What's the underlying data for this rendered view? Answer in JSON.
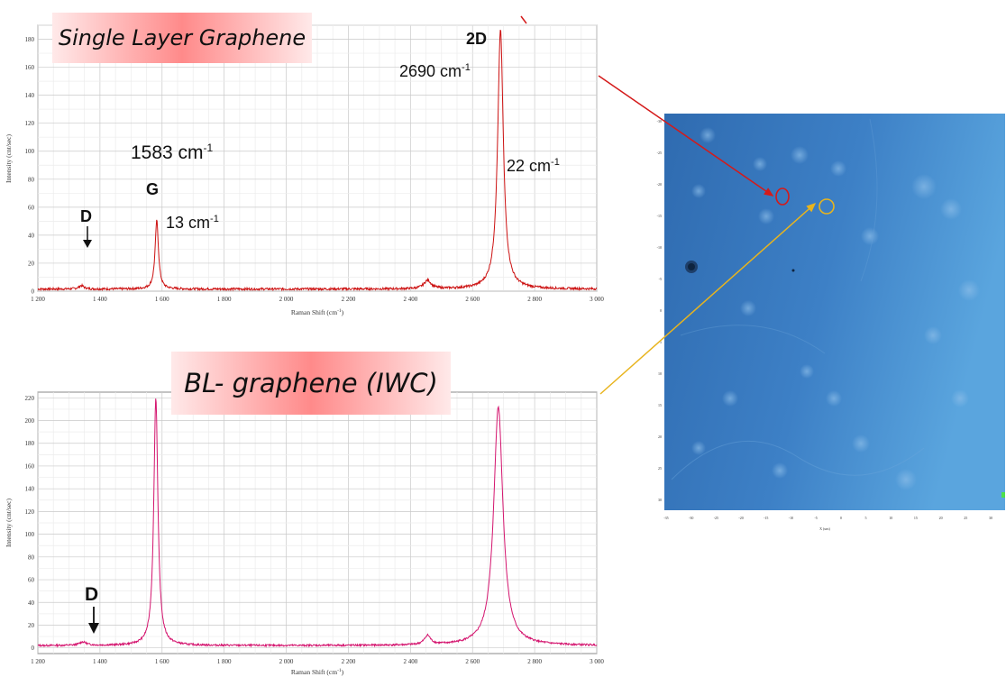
{
  "chart_data": [
    {
      "type": "line",
      "title": "Single Layer Graphene",
      "xlabel": "Raman Shift (cm",
      "xlabel_sup": "-1",
      "xlabel_end": ")",
      "ylabel": "Intensity (cnt/sec)",
      "xlim": [
        1200,
        3000
      ],
      "ylim": [
        0,
        190
      ],
      "x_ticks": [
        1200,
        1400,
        1600,
        1800,
        2000,
        2200,
        2400,
        2600,
        2800,
        3000
      ],
      "x_tick_labels": [
        "1 200",
        "1 400",
        "1 600",
        "1 800",
        "2 000",
        "2 200",
        "2 400",
        "2 600",
        "2 800",
        "3 000"
      ],
      "y_ticks": [
        0,
        20,
        40,
        60,
        80,
        100,
        120,
        140,
        160,
        180
      ],
      "y_tick_labels": [
        "0",
        "20",
        "40",
        "60",
        "80",
        "100",
        "120",
        "140",
        "160",
        "180"
      ],
      "grid": true,
      "line_color": "#cc1111",
      "baseline": 1.5,
      "peaks": [
        {
          "x": 1340,
          "height": 2.5,
          "width": 10
        },
        {
          "x": 1583,
          "height": 49,
          "width": 6.5
        },
        {
          "x": 2455,
          "height": 6,
          "width": 14
        },
        {
          "x": 2690,
          "height": 185,
          "width": 11
        }
      ],
      "annotations": {
        "peak_2d": "2D",
        "pos_2d": "2690 cm",
        "pos_2d_sup": "-1",
        "fwhm_2d": "22 cm",
        "fwhm_2d_sup": "-1",
        "pos_g": "1583 cm",
        "pos_g_sup": "-1",
        "peak_g": "G",
        "fwhm_g": "13 cm",
        "fwhm_g_sup": "-1",
        "peak_d": "D"
      }
    },
    {
      "type": "line",
      "title": "BL- graphene (IWC)",
      "xlabel": "Raman Shift (cm",
      "xlabel_sup": "-1",
      "xlabel_end": ")",
      "ylabel": "Intensity (cnt/sec)",
      "xlim": [
        1200,
        3000
      ],
      "ylim": [
        -5,
        225
      ],
      "x_ticks": [
        1200,
        1400,
        1600,
        1800,
        2000,
        2200,
        2400,
        2600,
        2800,
        3000
      ],
      "x_tick_labels": [
        "1 200",
        "1 400",
        "1 600",
        "1 800",
        "2 000",
        "2 200",
        "2 400",
        "2 600",
        "2 800",
        "3 000"
      ],
      "y_ticks": [
        0,
        20,
        40,
        60,
        80,
        100,
        120,
        140,
        160,
        180,
        200,
        220
      ],
      "y_tick_labels": [
        "0",
        "20",
        "40",
        "60",
        "80",
        "100",
        "120",
        "140",
        "160",
        "180",
        "200",
        "220"
      ],
      "grid": true,
      "line_color": "#d4146e",
      "baseline": 2,
      "peaks": [
        {
          "x": 1345,
          "height": 3,
          "width": 14
        },
        {
          "x": 1580,
          "height": 218,
          "width": 8
        },
        {
          "x": 2455,
          "height": 8,
          "width": 12
        },
        {
          "x": 2683,
          "height": 210,
          "width": 18
        }
      ],
      "annotations": {
        "peak_d": "D"
      }
    }
  ],
  "map": {
    "x_tick_labels": [
      "-35",
      "-30",
      "-25",
      "-20",
      "-15",
      "-10",
      "-5",
      "0",
      "5",
      "10",
      "15",
      "20",
      "25",
      "30"
    ],
    "y_tick_labels": [
      "-30",
      "-25",
      "-20",
      "-15",
      "-10",
      "-5",
      "0",
      "5",
      "10",
      "15",
      "20",
      "25",
      "30"
    ],
    "xlabel": "X (um)",
    "marker_colors": {
      "single": "#d41a1a",
      "bilayer": "#e8b41e"
    }
  }
}
